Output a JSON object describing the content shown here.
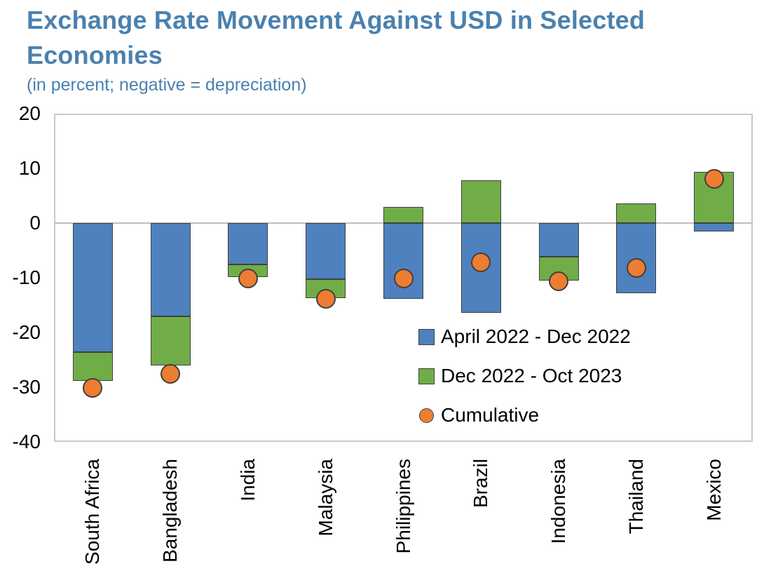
{
  "header": {
    "title_lines": [
      "Exchange Rate Movement Against USD in Selected",
      "Economies"
    ],
    "subtitle": "(in percent; negative = depreciation)",
    "title_color": "#4A81AF"
  },
  "chart_data": {
    "type": "bar",
    "stacked": true,
    "title": "Exchange Rate Movement Against USD in Selected Economies",
    "subtitle": "(in percent; negative = depreciation)",
    "categories": [
      "South Africa",
      "Bangladesh",
      "India",
      "Malaysia",
      "Philippines",
      "Brazil",
      "Indonesia",
      "Thailand",
      "Mexico"
    ],
    "series": [
      {
        "name": "April 2022 - Dec 2022",
        "type": "bar",
        "color": "#4E81BD",
        "values": [
          -23.6,
          -17.1,
          -7.5,
          -10.2,
          -13.8,
          -16.4,
          -6.1,
          -12.8,
          -1.6
        ]
      },
      {
        "name": "Dec 2022 - Oct 2023",
        "type": "bar",
        "color": "#70AD47",
        "values": [
          -5.2,
          -8.9,
          -2.4,
          -3.5,
          3.0,
          7.8,
          -4.4,
          3.6,
          9.4
        ]
      },
      {
        "name": "Cumulative",
        "type": "scatter",
        "color": "#ED7D31",
        "values": [
          -30.1,
          -27.6,
          -10.1,
          -13.8,
          -10.1,
          -7.2,
          -10.6,
          -8.2,
          8.1
        ]
      }
    ],
    "ylim": [
      -40,
      20
    ],
    "yticks": [
      20,
      10,
      0,
      -10,
      -20,
      -30,
      -40
    ],
    "xlabel": "",
    "ylabel": "",
    "grid": "zero-line-only",
    "legend_position": "inside-bottom-right",
    "colors": {
      "zero_gridline": "#BFBFBF",
      "plot_frame": "#C9C9C9",
      "bar_border": "#404040",
      "axis_text": "#000000"
    }
  }
}
